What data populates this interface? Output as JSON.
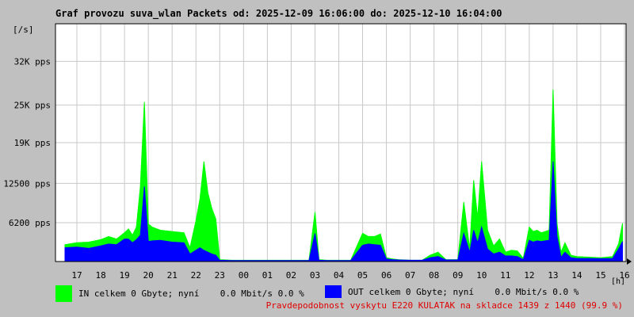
{
  "chart_data": {
    "type": "area",
    "title": "Graf provozu suva_wlan Packets od: 2025-12-09 16:06:00 do: 2025-12-10 16:04:00",
    "ylabel": "[/s]",
    "xlabel": "[h]",
    "ylim": [
      0,
      38000
    ],
    "y_ticks": [
      {
        "value": 6200,
        "label": "6200 pps"
      },
      {
        "value": 12500,
        "label": "12500 pps"
      },
      {
        "value": 19000,
        "label": "19K pps"
      },
      {
        "value": 25000,
        "label": "25K pps"
      },
      {
        "value": 32000,
        "label": "32K pps"
      }
    ],
    "x_tick_labels": [
      "17",
      "18",
      "19",
      "20",
      "21",
      "22",
      "23",
      "00",
      "01",
      "02",
      "03",
      "04",
      "05",
      "06",
      "07",
      "08",
      "09",
      "10",
      "11",
      "12",
      "13",
      "14",
      "15",
      "16"
    ],
    "x": [
      "16:30",
      "17:00",
      "17:30",
      "18:00",
      "18:20",
      "18:40",
      "19:00",
      "19:10",
      "19:20",
      "19:30",
      "19:40",
      "19:50",
      "20:00",
      "20:10",
      "20:30",
      "21:00",
      "21:30",
      "21:45",
      "22:00",
      "22:10",
      "22:20",
      "22:30",
      "22:40",
      "22:50",
      "23:00",
      "23:30",
      "00:00",
      "01:00",
      "02:00",
      "02:45",
      "03:00",
      "03:10",
      "03:30",
      "04:00",
      "04:30",
      "05:00",
      "05:15",
      "05:30",
      "05:45",
      "06:00",
      "06:15",
      "06:30",
      "07:00",
      "07:30",
      "07:50",
      "08:10",
      "08:30",
      "09:00",
      "09:15",
      "09:30",
      "09:40",
      "09:50",
      "10:00",
      "10:15",
      "10:30",
      "10:45",
      "11:00",
      "11:15",
      "11:30",
      "11:45",
      "12:00",
      "12:10",
      "12:20",
      "12:30",
      "12:40",
      "12:50",
      "13:00",
      "13:10",
      "13:20",
      "13:30",
      "13:45",
      "14:00",
      "14:30",
      "15:00",
      "15:30",
      "15:45",
      "15:55"
    ],
    "series": [
      {
        "name": "IN",
        "color": "#00ff00",
        "values": [
          2700,
          3000,
          3100,
          3500,
          4000,
          3600,
          4600,
          5200,
          4200,
          5500,
          12000,
          25500,
          6000,
          5500,
          5000,
          4800,
          4600,
          2200,
          6500,
          10000,
          16000,
          11000,
          8500,
          6800,
          300,
          200,
          200,
          200,
          200,
          200,
          7900,
          300,
          200,
          200,
          200,
          4500,
          4000,
          4000,
          4400,
          600,
          400,
          300,
          200,
          200,
          1000,
          1500,
          300,
          300,
          9500,
          2000,
          13000,
          7000,
          16000,
          5000,
          2500,
          3600,
          1500,
          1800,
          1700,
          500,
          5500,
          4800,
          5000,
          4600,
          4800,
          5000,
          27500,
          6000,
          1500,
          3000,
          1000,
          800,
          700,
          600,
          800,
          2800,
          6100
        ]
      },
      {
        "name": "OUT",
        "color": "#0000ff",
        "values": [
          2200,
          2300,
          2100,
          2500,
          2800,
          2700,
          3600,
          3600,
          3000,
          3500,
          4200,
          12000,
          3200,
          3300,
          3400,
          3100,
          3000,
          1200,
          1800,
          2200,
          1800,
          1500,
          1200,
          1000,
          200,
          150,
          150,
          150,
          150,
          150,
          4500,
          200,
          150,
          150,
          150,
          2600,
          2800,
          2700,
          2600,
          400,
          300,
          250,
          200,
          200,
          600,
          800,
          250,
          250,
          4500,
          1500,
          5000,
          3000,
          5500,
          2000,
          1200,
          1500,
          900,
          900,
          800,
          300,
          3400,
          3100,
          3300,
          3200,
          3300,
          3400,
          16000,
          4000,
          700,
          1500,
          600,
          500,
          500,
          450,
          500,
          2000,
          3200
        ]
      }
    ],
    "legend": [
      {
        "label": "IN celkem 0 Gbyte; nyní    0.0 Mbit/s 0.0 %",
        "color": "#00ff00"
      },
      {
        "label": "OUT celkem 0 Gbyte; nyní    0.0 Mbit/s 0.0 %",
        "color": "#0000ff"
      }
    ],
    "annotation": "Pravdepodobnost vyskytu E220 KULATAK na skladce 1439 z 1440 (99.9 %)",
    "grid": true
  }
}
